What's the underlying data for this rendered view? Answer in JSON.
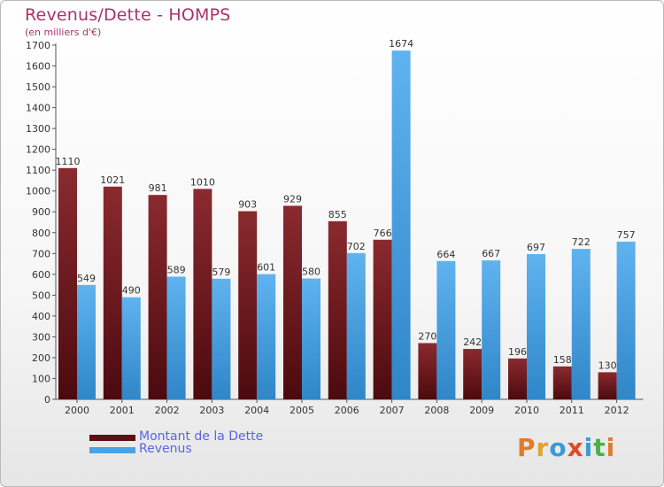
{
  "header": {
    "title": "Revenus/Dette - HOMPS",
    "subtitle": "(en milliers d'€)"
  },
  "colors": {
    "dette": "#7a1f24",
    "revenus": "#4aa3e6",
    "title": "#a8336b",
    "legend_text": "#5a64e6"
  },
  "legend": [
    {
      "label": "Montant de la Dette",
      "color": "#5c0f14"
    },
    {
      "label": "Revenus",
      "color": "#4aa3e6"
    }
  ],
  "logo": {
    "text": "Proxiti",
    "letter_colors": [
      "#e07b2a",
      "#e0a42a",
      "#3a9ad9",
      "#e04a2a",
      "#3a9ad9",
      "#4bb04b",
      "#e07b2a"
    ]
  },
  "chart_data": {
    "type": "bar",
    "title": "Revenus/Dette - HOMPS",
    "subtitle": "(en milliers d'€)",
    "categories": [
      "2000",
      "2001",
      "2002",
      "2003",
      "2004",
      "2005",
      "2006",
      "2007",
      "2008",
      "2009",
      "2010",
      "2011",
      "2012"
    ],
    "series": [
      {
        "name": "Montant de la Dette",
        "values": [
          1110,
          1021,
          981,
          1010,
          903,
          929,
          855,
          766,
          270,
          242,
          196,
          158,
          130
        ]
      },
      {
        "name": "Revenus",
        "values": [
          549,
          490,
          589,
          579,
          601,
          580,
          702,
          1674,
          664,
          667,
          697,
          722,
          757
        ]
      }
    ],
    "ylim": [
      0,
      1700
    ],
    "yticks": [
      0,
      100,
      200,
      300,
      400,
      500,
      600,
      700,
      800,
      900,
      1000,
      1100,
      1200,
      1300,
      1400,
      1500,
      1600,
      1700
    ],
    "grid": false,
    "legend_position": "bottom-left"
  }
}
